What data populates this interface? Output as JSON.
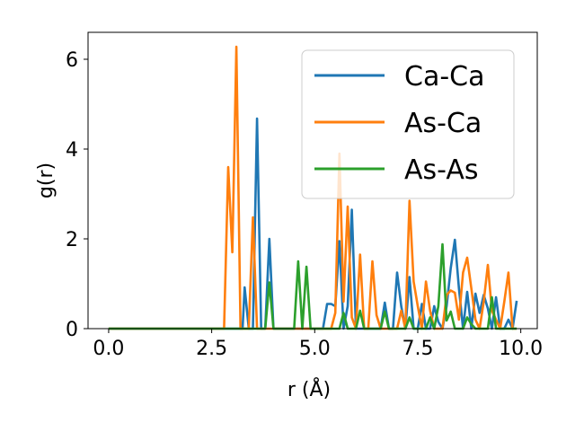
{
  "chart_data": {
    "type": "line",
    "title": "",
    "xlabel": "r (Å)",
    "ylabel": "g(r)",
    "xlim": [
      -0.5,
      10.4
    ],
    "ylim": [
      0,
      6.6
    ],
    "xticks": [
      0.0,
      2.5,
      5.0,
      7.5,
      10.0
    ],
    "xtick_labels": [
      "0.0",
      "2.5",
      "5.0",
      "7.5",
      "10.0"
    ],
    "yticks": [
      0,
      2,
      4,
      6
    ],
    "ytick_labels": [
      "0",
      "2",
      "4",
      "6"
    ],
    "grid": false,
    "legend_position": "top-right",
    "series": [
      {
        "name": "Ca-Ca",
        "color": "#1f77b4",
        "points": [
          [
            0,
            0
          ],
          [
            3.15,
            0
          ],
          [
            3.25,
            0
          ],
          [
            3.3,
            0.92
          ],
          [
            3.4,
            0
          ],
          [
            3.5,
            0
          ],
          [
            3.6,
            4.68
          ],
          [
            3.7,
            0
          ],
          [
            3.8,
            0
          ],
          [
            3.9,
            2.0
          ],
          [
            4.0,
            0
          ],
          [
            5.2,
            0
          ],
          [
            5.3,
            0.55
          ],
          [
            5.4,
            0.55
          ],
          [
            5.5,
            0.5
          ],
          [
            5.6,
            1.95
          ],
          [
            5.7,
            0
          ],
          [
            5.8,
            0.5
          ],
          [
            5.9,
            2.65
          ],
          [
            6.0,
            0
          ],
          [
            6.6,
            0
          ],
          [
            6.7,
            0.58
          ],
          [
            6.8,
            0
          ],
          [
            6.9,
            0
          ],
          [
            7.0,
            1.25
          ],
          [
            7.1,
            0.5
          ],
          [
            7.2,
            0
          ],
          [
            7.3,
            1.15
          ],
          [
            7.4,
            0
          ],
          [
            7.5,
            0
          ],
          [
            7.6,
            0.55
          ],
          [
            7.7,
            0
          ],
          [
            7.8,
            0
          ],
          [
            7.9,
            0.5
          ],
          [
            8.0,
            0.15
          ],
          [
            8.1,
            0
          ],
          [
            8.2,
            0.5
          ],
          [
            8.3,
            1.35
          ],
          [
            8.4,
            1.98
          ],
          [
            8.5,
            0.9
          ],
          [
            8.6,
            0
          ],
          [
            8.7,
            0.82
          ],
          [
            8.8,
            0
          ],
          [
            8.9,
            0.78
          ],
          [
            9.0,
            0.35
          ],
          [
            9.1,
            0.75
          ],
          [
            9.2,
            0.45
          ],
          [
            9.3,
            0
          ],
          [
            9.4,
            0.7
          ],
          [
            9.5,
            0
          ],
          [
            9.6,
            0
          ],
          [
            9.7,
            0.2
          ],
          [
            9.8,
            0
          ],
          [
            9.9,
            0.62
          ]
        ]
      },
      {
        "name": "As-Ca",
        "color": "#ff7f0e",
        "points": [
          [
            0,
            0
          ],
          [
            2.8,
            0
          ],
          [
            2.9,
            3.6
          ],
          [
            3.0,
            1.7
          ],
          [
            3.1,
            6.28
          ],
          [
            3.2,
            0
          ],
          [
            3.3,
            0
          ],
          [
            3.4,
            0
          ],
          [
            3.5,
            2.48
          ],
          [
            3.6,
            0
          ],
          [
            5.3,
            0
          ],
          [
            5.4,
            0
          ],
          [
            5.5,
            0.35
          ],
          [
            5.6,
            3.9
          ],
          [
            5.7,
            0.6
          ],
          [
            5.8,
            2.72
          ],
          [
            5.9,
            0.25
          ],
          [
            6.0,
            0
          ],
          [
            6.1,
            1.65
          ],
          [
            6.2,
            0
          ],
          [
            6.3,
            0
          ],
          [
            6.4,
            1.5
          ],
          [
            6.5,
            0.3
          ],
          [
            6.6,
            0
          ],
          [
            7.0,
            0
          ],
          [
            7.1,
            0.4
          ],
          [
            7.2,
            0
          ],
          [
            7.3,
            2.85
          ],
          [
            7.4,
            1.05
          ],
          [
            7.5,
            0.5
          ],
          [
            7.6,
            0
          ],
          [
            7.7,
            1.05
          ],
          [
            7.8,
            0.4
          ],
          [
            7.9,
            0
          ],
          [
            8.0,
            0
          ],
          [
            8.1,
            0
          ],
          [
            8.2,
            0.75
          ],
          [
            8.3,
            0.85
          ],
          [
            8.4,
            0.8
          ],
          [
            8.5,
            0.2
          ],
          [
            8.6,
            1.25
          ],
          [
            8.7,
            1.58
          ],
          [
            8.8,
            0.9
          ],
          [
            8.9,
            0.2
          ],
          [
            9.0,
            0
          ],
          [
            9.1,
            0.6
          ],
          [
            9.2,
            1.42
          ],
          [
            9.3,
            0.4
          ],
          [
            9.4,
            0.2
          ],
          [
            9.5,
            0
          ],
          [
            9.6,
            0.6
          ],
          [
            9.7,
            1.25
          ],
          [
            9.8,
            0
          ],
          [
            9.9,
            0
          ]
        ]
      },
      {
        "name": "As-As",
        "color": "#2ca02c",
        "points": [
          [
            0,
            0
          ],
          [
            3.8,
            0
          ],
          [
            3.9,
            1.03
          ],
          [
            4.0,
            0
          ],
          [
            4.5,
            0
          ],
          [
            4.6,
            1.5
          ],
          [
            4.7,
            0
          ],
          [
            4.8,
            1.38
          ],
          [
            4.9,
            0
          ],
          [
            5.5,
            0
          ],
          [
            5.6,
            0
          ],
          [
            5.7,
            0.35
          ],
          [
            5.8,
            0
          ],
          [
            6.0,
            0
          ],
          [
            6.1,
            0.4
          ],
          [
            6.2,
            0
          ],
          [
            6.6,
            0
          ],
          [
            6.7,
            0.38
          ],
          [
            6.8,
            0
          ],
          [
            7.2,
            0
          ],
          [
            7.3,
            0.25
          ],
          [
            7.4,
            0
          ],
          [
            7.7,
            0
          ],
          [
            7.8,
            0.25
          ],
          [
            7.9,
            0
          ],
          [
            8.0,
            0.5
          ],
          [
            8.1,
            1.88
          ],
          [
            8.2,
            0.18
          ],
          [
            8.3,
            0.38
          ],
          [
            8.4,
            0
          ],
          [
            8.6,
            0
          ],
          [
            8.7,
            0.25
          ],
          [
            8.8,
            0.1
          ],
          [
            8.9,
            0
          ],
          [
            9.2,
            0
          ],
          [
            9.3,
            0.7
          ],
          [
            9.4,
            0
          ],
          [
            9.9,
            0
          ]
        ]
      }
    ]
  }
}
